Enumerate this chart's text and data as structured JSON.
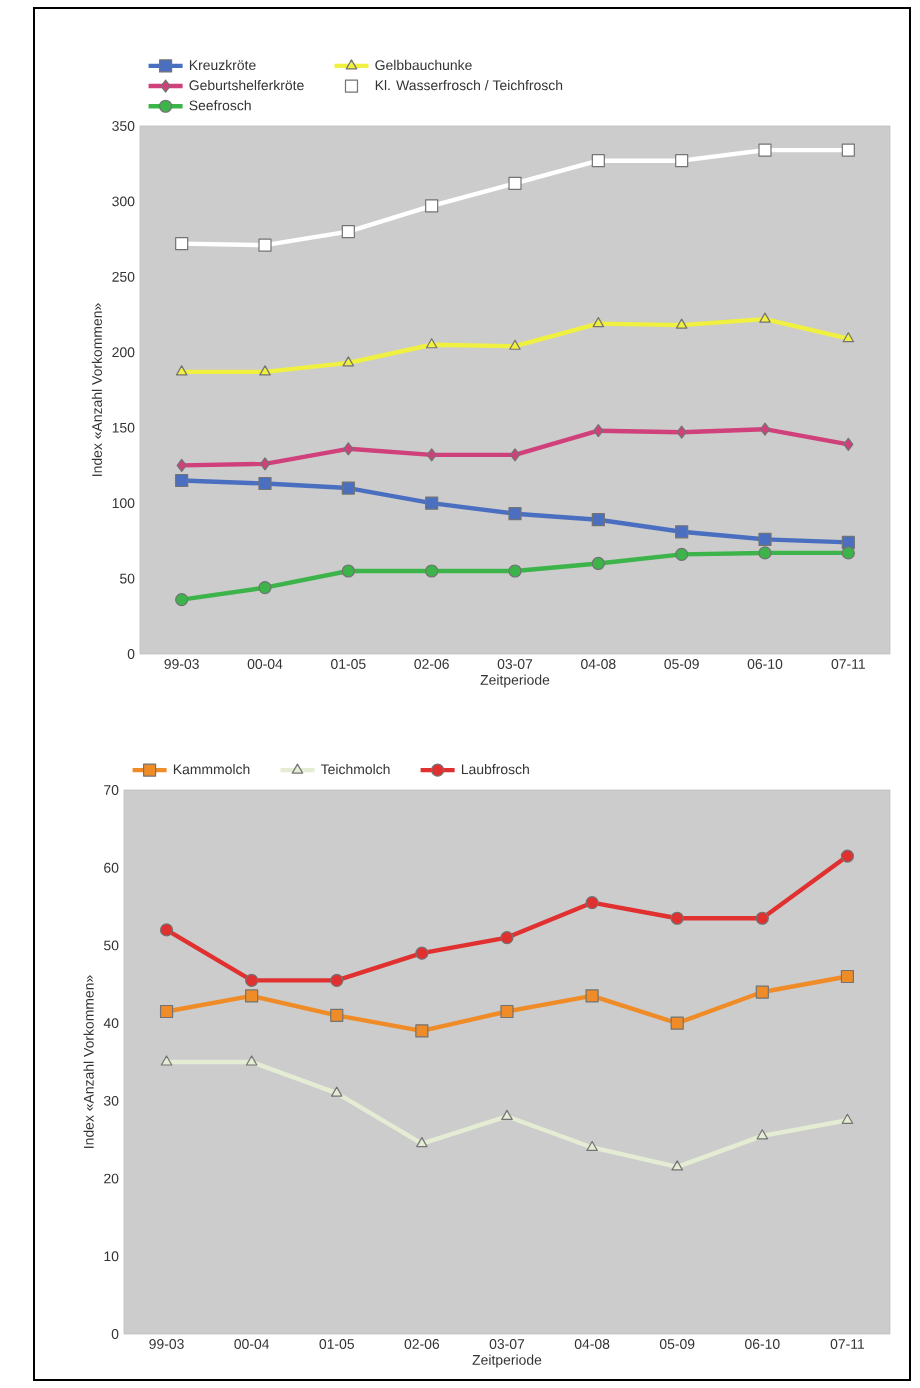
{
  "chart_data": [
    {
      "type": "line",
      "xlabel": "Zeitperiode",
      "ylabel": "Index «Anzahl Vorkommen»",
      "categories": [
        "99-03",
        "00-04",
        "01-05",
        "02-06",
        "03-07",
        "04-08",
        "05-09",
        "06-10",
        "07-11"
      ],
      "series": [
        {
          "name": "Kreuzkröte",
          "color": "#4a6fc0",
          "marker": "square",
          "values": [
            115,
            113,
            110,
            100,
            93,
            89,
            81,
            76,
            74
          ]
        },
        {
          "name": "Gelbbauchunke",
          "color": "#f0f040",
          "marker": "triangle",
          "values": [
            187,
            187,
            193,
            205,
            204,
            219,
            218,
            222,
            209
          ]
        },
        {
          "name": "Geburtshelferkröte",
          "color": "#d0407a",
          "marker": "diamond",
          "values": [
            125,
            126,
            136,
            132,
            132,
            148,
            147,
            149,
            139
          ]
        },
        {
          "name": "Kl. Wasserfrosch / Teichfrosch",
          "color": "#ffffff",
          "marker": "square",
          "values": [
            272,
            271,
            280,
            297,
            312,
            327,
            327,
            334,
            334
          ]
        },
        {
          "name": "Seefrosch",
          "color": "#3cb44a",
          "marker": "circle",
          "values": [
            36,
            44,
            55,
            55,
            55,
            60,
            66,
            67,
            67
          ]
        }
      ],
      "ylim": [
        0,
        350
      ],
      "yticks": [
        0,
        50,
        100,
        150,
        200,
        250,
        300,
        350
      ],
      "legend": "top",
      "line_style": "solid"
    },
    {
      "type": "line",
      "xlabel": "Zeitperiode",
      "ylabel": "Index «Anzahl Vorkommen»",
      "categories": [
        "99-03",
        "00-04",
        "01-05",
        "02-06",
        "03-07",
        "04-08",
        "05-09",
        "06-10",
        "07-11"
      ],
      "series": [
        {
          "name": "Kammmolch",
          "color": "#f08c28",
          "marker": "square",
          "values": [
            41.5,
            43.5,
            41,
            39,
            41.5,
            43.5,
            40,
            44,
            46
          ]
        },
        {
          "name": "Teichmolch",
          "color": "#e4ecd4",
          "marker": "triangle",
          "values": [
            35,
            35,
            31,
            24.5,
            28,
            24,
            21.5,
            25.5,
            27.5
          ]
        },
        {
          "name": "Laubfrosch",
          "color": "#e03030",
          "marker": "circle",
          "values": [
            52,
            45.5,
            45.5,
            49,
            51,
            55.5,
            53.5,
            53.5,
            61.5
          ]
        }
      ],
      "ylim": [
        0,
        70
      ],
      "yticks": [
        0,
        10,
        20,
        30,
        40,
        50,
        60,
        70
      ],
      "legend": "top",
      "line_style": "solid"
    }
  ]
}
